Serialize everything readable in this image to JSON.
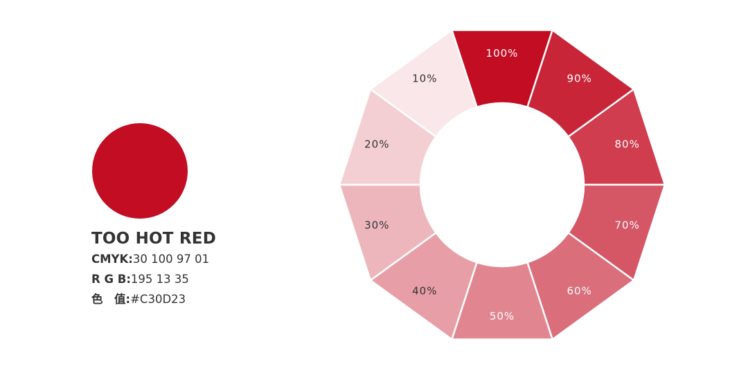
{
  "swatch": {
    "color_name": "TOO HOT RED",
    "hex_color": "#C30D23",
    "specs": [
      {
        "label": "CMYK:",
        "value": "30 100 97 01"
      },
      {
        "label": "R G B:",
        "value": "195 13 35"
      },
      {
        "label": "色　值:",
        "value": "#C30D23"
      }
    ]
  },
  "tint_wheel": {
    "segments": [
      {
        "label": "100%",
        "fill": "#C30D23",
        "text_color": "#ffffff"
      },
      {
        "label": "90%",
        "fill": "#C92539",
        "text_color": "#ffffff"
      },
      {
        "label": "80%",
        "fill": "#CF3D4F",
        "text_color": "#ffffff"
      },
      {
        "label": "70%",
        "fill": "#D55665",
        "text_color": "#ffffff"
      },
      {
        "label": "60%",
        "fill": "#DB6E7B",
        "text_color": "#ffffff"
      },
      {
        "label": "50%",
        "fill": "#E18691",
        "text_color": "#ffffff"
      },
      {
        "label": "40%",
        "fill": "#E79EA7",
        "text_color": "#333333"
      },
      {
        "label": "30%",
        "fill": "#EDB6BD",
        "text_color": "#333333"
      },
      {
        "label": "20%",
        "fill": "#F3CFD3",
        "text_color": "#333333"
      },
      {
        "label": "10%",
        "fill": "#F9E7E9",
        "text_color": "#333333"
      }
    ]
  }
}
